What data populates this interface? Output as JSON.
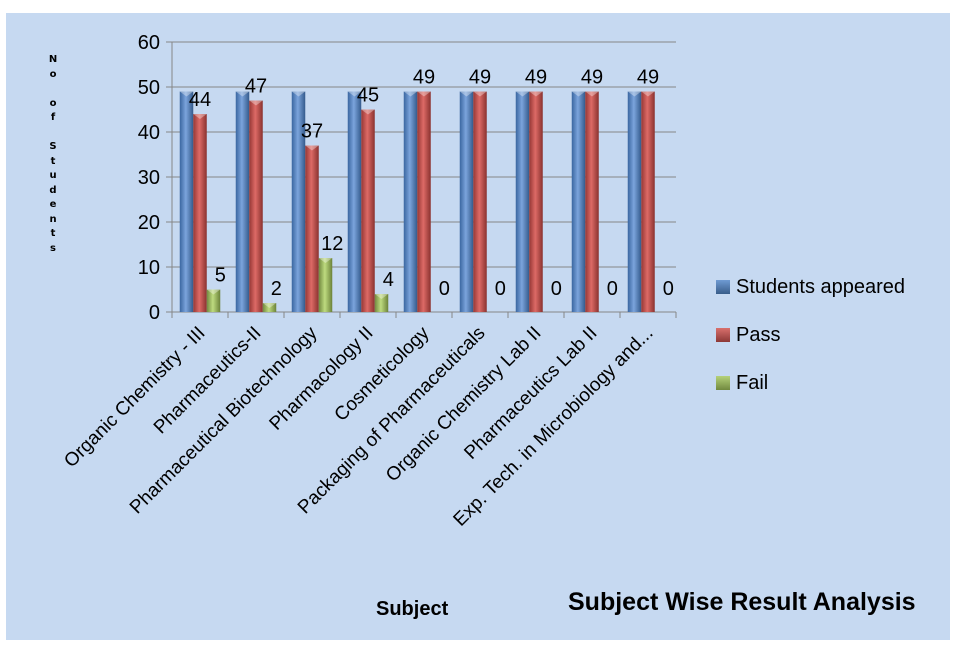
{
  "chart_data": {
    "type": "bar",
    "title": "Subject Wise Result Analysis",
    "xlabel": "Subject",
    "ylabel": "No of Students",
    "ylim": [
      0,
      60
    ],
    "yticks": [
      "0",
      "10",
      "20",
      "30",
      "40",
      "50",
      "60"
    ],
    "legend_position": "right",
    "grid": true,
    "categories": [
      "Organic Chemistry - III",
      "Pharmaceutics-II",
      "Pharmaceutical Biotechnology",
      "Pharmacology II",
      "Cosmeticology",
      "Packaging of Pharmaceuticals",
      "Organic Chemistry Lab II",
      "Pharmaceutics Lab II",
      "Exp. Tech. in Microbiology and..."
    ],
    "series": [
      {
        "name": "Students appeared",
        "color": "#4f81bd",
        "values": [
          49,
          49,
          49,
          49,
          49,
          49,
          49,
          49,
          49
        ]
      },
      {
        "name": "Pass",
        "color": "#c0504d",
        "values": [
          44,
          47,
          37,
          45,
          49,
          49,
          49,
          49,
          49
        ]
      },
      {
        "name": "Fail",
        "color": "#9bbb59",
        "values": [
          5,
          2,
          12,
          4,
          0,
          0,
          0,
          0,
          0
        ]
      }
    ],
    "data_labels": {
      "Pass": [
        "44",
        "47",
        "37",
        "45",
        "49",
        "49",
        "49",
        "49",
        "49"
      ],
      "Fail": [
        "5",
        "2",
        "12",
        "4",
        "0",
        "0",
        "0",
        "0",
        "0"
      ]
    }
  }
}
